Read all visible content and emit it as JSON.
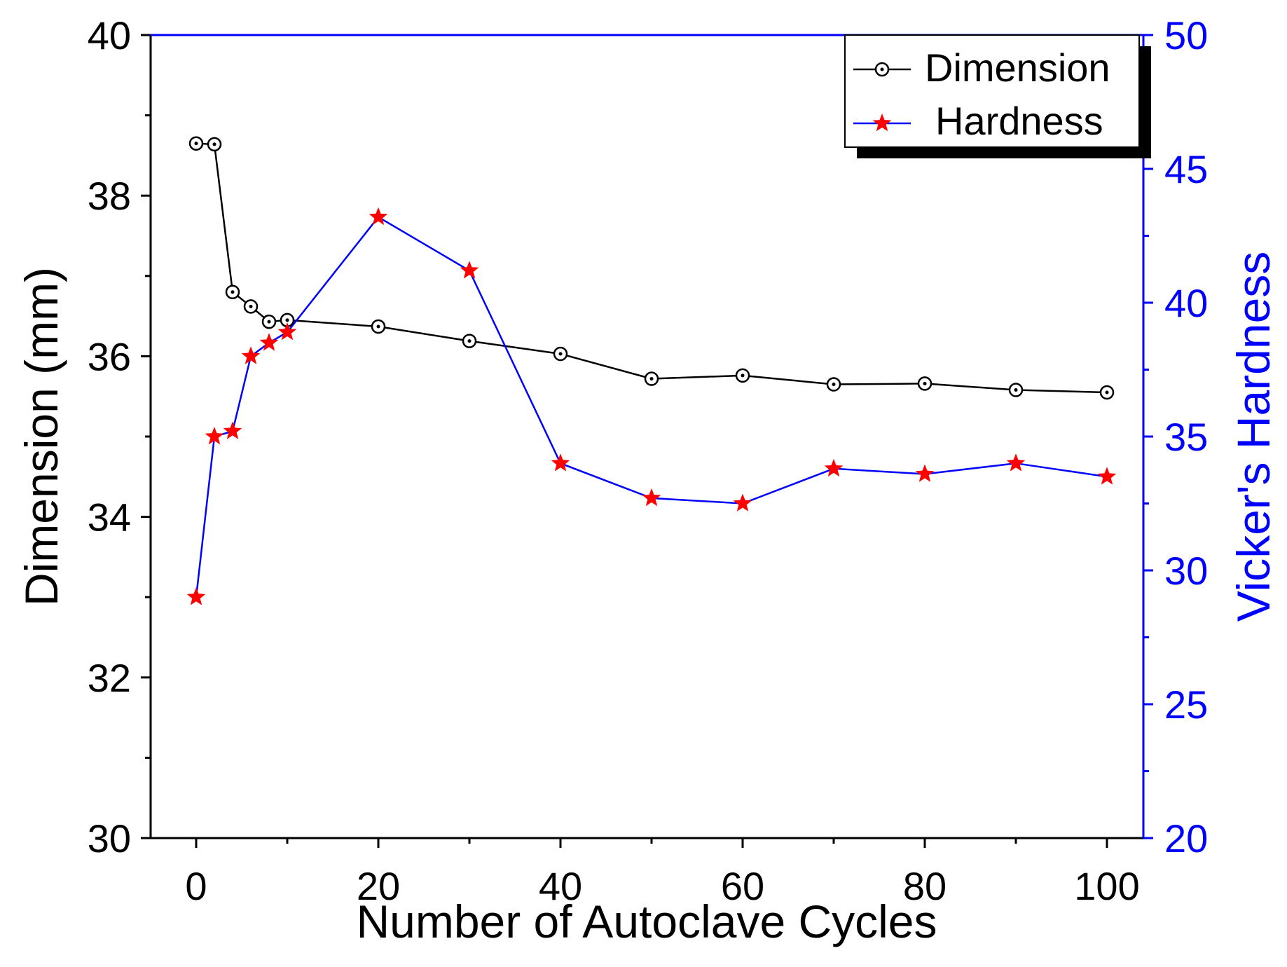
{
  "chart_data": {
    "type": "line",
    "title": "",
    "xlabel": "Number of Autoclave Cycles",
    "ylabel": "Dimension (mm)",
    "y2label": "Vicker's Hardness",
    "xlim": [
      -5,
      105
    ],
    "ylim": [
      30,
      40
    ],
    "y2lim": [
      20,
      50
    ],
    "xticks": [
      0,
      20,
      40,
      60,
      80,
      100
    ],
    "yticks": [
      30,
      32,
      34,
      36,
      38,
      40
    ],
    "y2ticks": [
      20,
      25,
      30,
      35,
      40,
      45,
      50
    ],
    "legend_position": "top-right",
    "colors": {
      "dimension": "#000000",
      "hardness_line": "#0000ff",
      "hardness_marker": "#ff0000",
      "right_axis": "#0000ff",
      "left_axis": "#000000"
    },
    "series": [
      {
        "name": "Dimension",
        "axis": "left",
        "marker": "circle-dot",
        "x": [
          0,
          2,
          4,
          6,
          8,
          10,
          20,
          30,
          40,
          50,
          60,
          70,
          80,
          90,
          100
        ],
        "values": [
          38.65,
          38.64,
          36.8,
          36.62,
          36.43,
          36.45,
          36.37,
          36.19,
          36.03,
          35.72,
          35.76,
          35.65,
          35.66,
          35.58,
          35.55
        ]
      },
      {
        "name": "Hardness",
        "axis": "right",
        "marker": "star",
        "x": [
          0,
          2,
          4,
          6,
          8,
          10,
          20,
          30,
          40,
          50,
          60,
          70,
          80,
          90,
          100
        ],
        "values": [
          29.0,
          35.0,
          35.2,
          38.0,
          38.5,
          38.9,
          43.2,
          41.2,
          34.0,
          32.7,
          32.5,
          33.8,
          33.6,
          34.0,
          33.5
        ]
      }
    ]
  }
}
